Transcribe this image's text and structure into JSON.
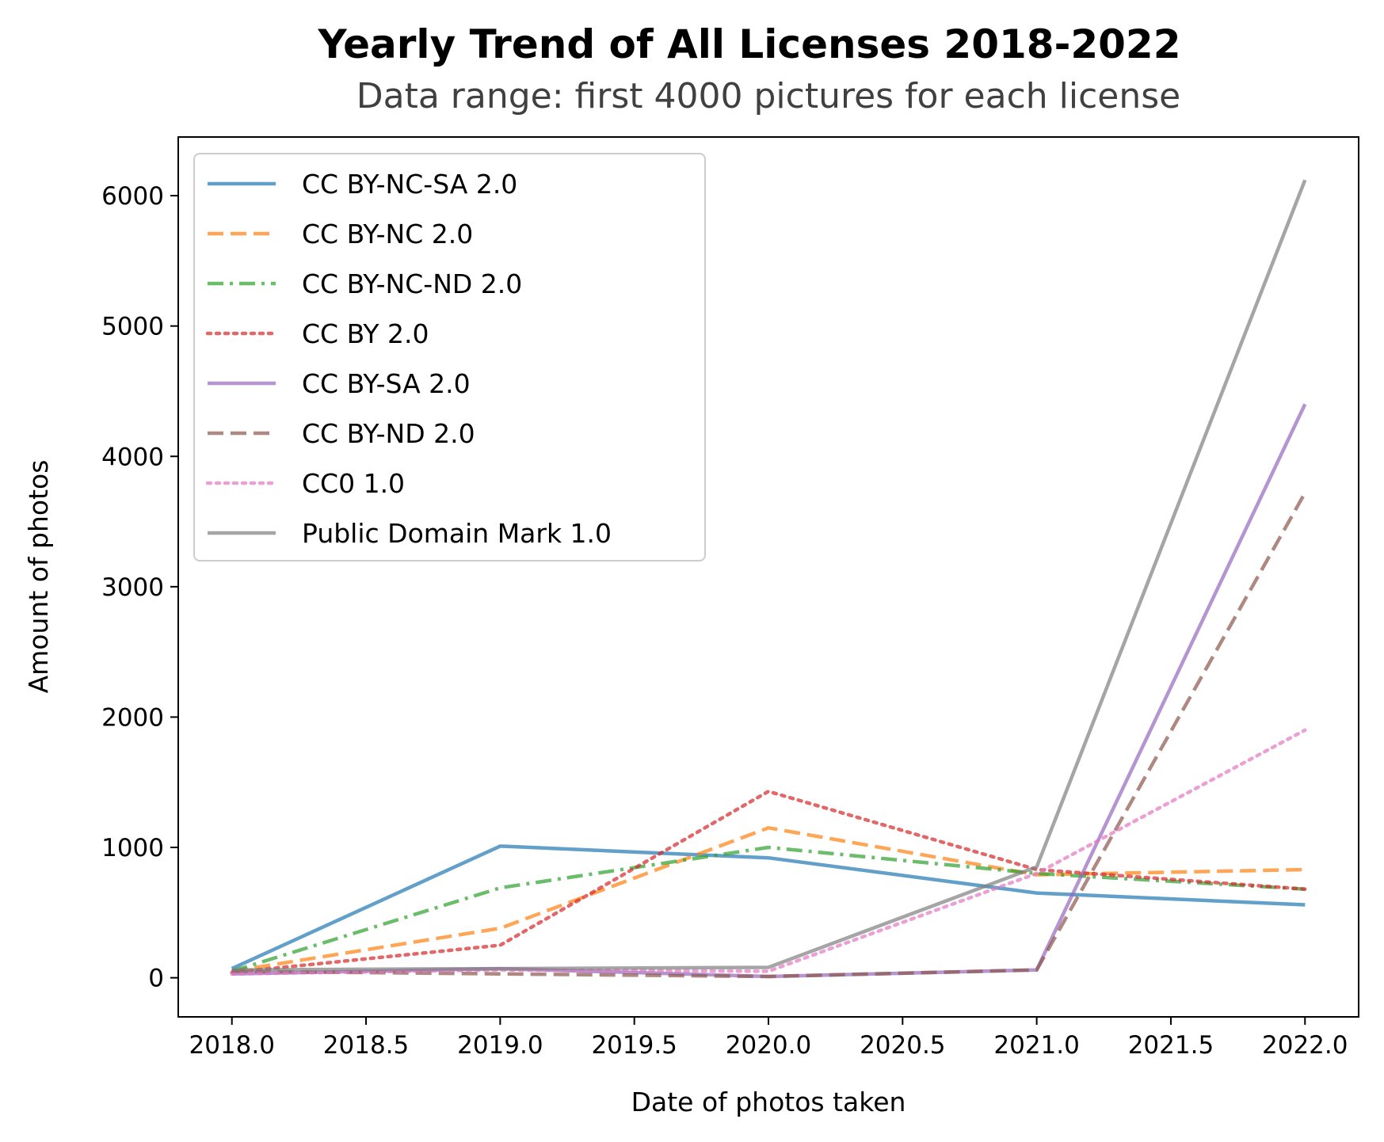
{
  "chart_data": {
    "type": "line",
    "title": "Yearly Trend of All Licenses 2018-2022",
    "subtitle": "Data range: first 4000 pictures for each license",
    "xlabel": "Date of photos taken",
    "ylabel": "Amount of photos",
    "x": [
      2018,
      2019,
      2020,
      2021,
      2022
    ],
    "xlim": [
      2017.8,
      2022.2
    ],
    "ylim": [
      -300,
      6450
    ],
    "xticks": [
      "2018.0",
      "2018.5",
      "2019.0",
      "2019.5",
      "2020.0",
      "2020.5",
      "2021.0",
      "2021.5",
      "2022.0"
    ],
    "yticks": [
      "0",
      "1000",
      "2000",
      "3000",
      "4000",
      "5000",
      "6000"
    ],
    "legend_position": "upper-left",
    "grid": false,
    "series": [
      {
        "name": "CC BY-NC-SA 2.0",
        "values": [
          70,
          1010,
          920,
          650,
          560
        ],
        "color": "#1f77b4",
        "style": "solid"
      },
      {
        "name": "CC BY-NC 2.0",
        "values": [
          50,
          380,
          1150,
          790,
          830
        ],
        "color": "#ff7f0e",
        "style": "dashed"
      },
      {
        "name": "CC BY-NC-ND 2.0",
        "values": [
          50,
          690,
          1000,
          800,
          680
        ],
        "color": "#2ca02c",
        "style": "dashdot"
      },
      {
        "name": "CC BY 2.0",
        "values": [
          40,
          250,
          1430,
          830,
          680
        ],
        "color": "#d62728",
        "style": "dotted"
      },
      {
        "name": "CC BY-SA 2.0",
        "values": [
          30,
          70,
          10,
          60,
          4400
        ],
        "color": "#9467bd",
        "style": "solid"
      },
      {
        "name": "CC BY-ND 2.0",
        "values": [
          50,
          30,
          10,
          60,
          3720
        ],
        "color": "#8c564b",
        "style": "dashed"
      },
      {
        "name": "CC0 1.0",
        "values": [
          30,
          60,
          50,
          800,
          1900
        ],
        "color": "#e377c2",
        "style": "dotted"
      },
      {
        "name": "Public Domain Mark 1.0",
        "values": [
          60,
          70,
          80,
          850,
          6120
        ],
        "color": "#7f7f7f",
        "style": "solid"
      }
    ]
  }
}
